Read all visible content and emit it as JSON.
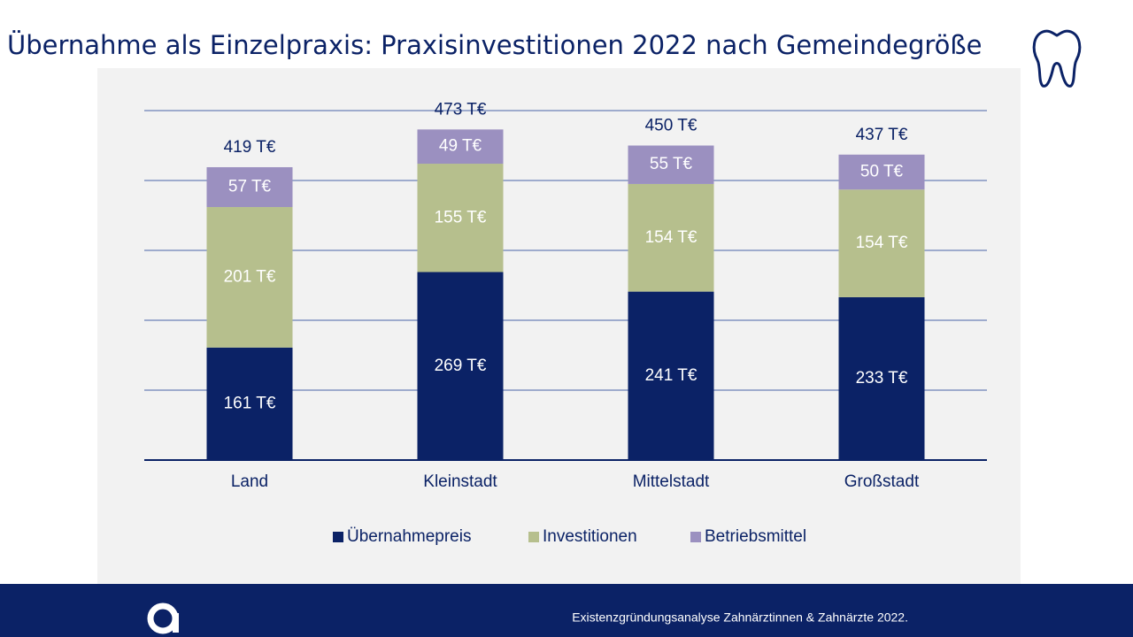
{
  "title": "Übernahme als Einzelpraxis: Praxisinvestitionen 2022 nach Gemeindegröße",
  "footer": "Existenzgründungsanalyse Zahnärztinnen & Zahnärzte 2022.",
  "chart_data": {
    "type": "stacked_bar",
    "categories": [
      "Land",
      "Kleinstadt",
      "Mittelstadt",
      "Großstadt"
    ],
    "series": [
      {
        "name": "Übernahmepreis",
        "color": "#0b2266",
        "values": [
          161,
          269,
          241,
          233
        ],
        "value_labels": [
          "161 T€",
          "269 T€",
          "241 T€",
          "233 T€"
        ]
      },
      {
        "name": "Investitionen",
        "color": "#b6bf8d",
        "values": [
          201,
          155,
          154,
          154
        ],
        "value_labels": [
          "201 T€",
          "155 T€",
          "154 T€",
          "154 T€"
        ]
      },
      {
        "name": "Betriebsmittel",
        "color": "#9b90c0",
        "values": [
          57,
          49,
          55,
          50
        ],
        "value_labels": [
          "57 T€",
          "49 T€",
          "55 T€",
          "50 T€"
        ]
      }
    ],
    "totals": {
      "values": [
        419,
        473,
        450,
        437
      ],
      "value_labels": [
        "419 T€",
        "473 T€",
        "450 T€",
        "437 T€"
      ]
    },
    "ylim": [
      0,
      500
    ],
    "yticks": [
      0,
      100,
      200,
      300,
      400,
      500
    ],
    "grid": true,
    "legend": "bottom"
  }
}
